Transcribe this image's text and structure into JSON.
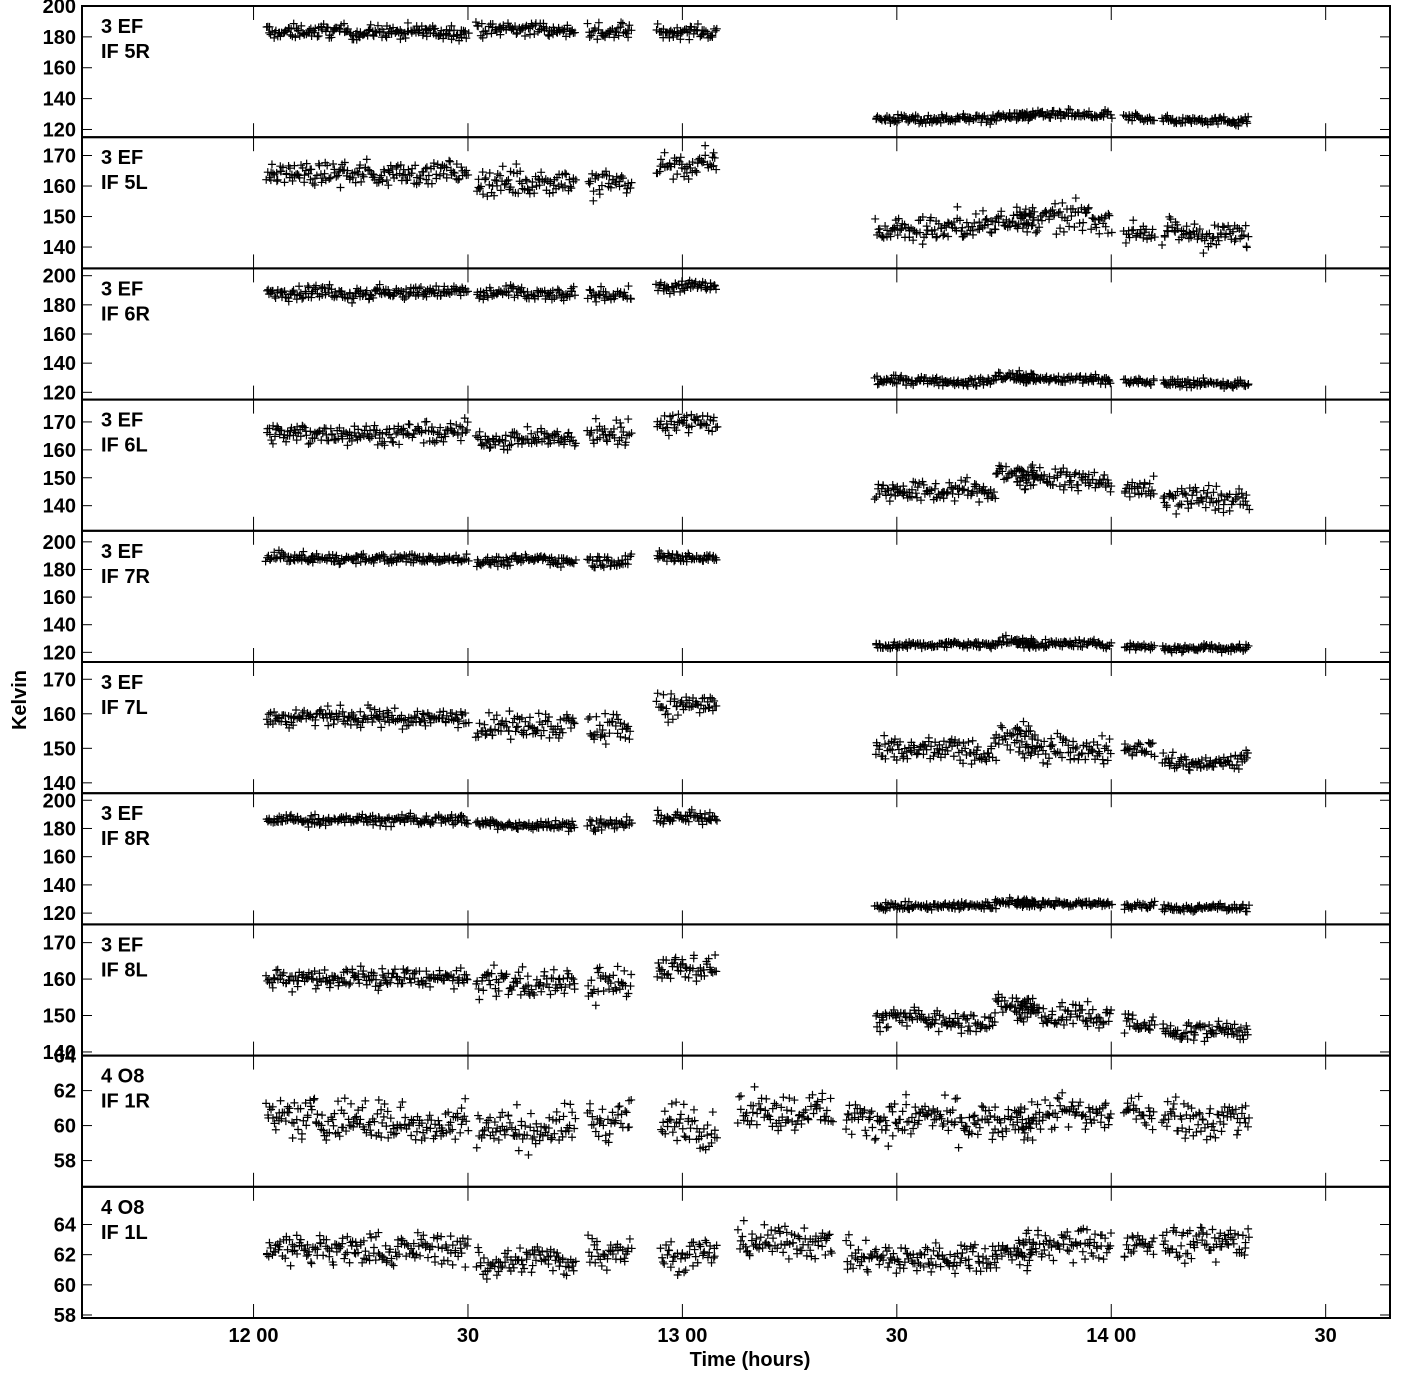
{
  "chart_data": {
    "type": "scatter",
    "xlabel": "Time (hours)",
    "ylabel": "Kelvin",
    "x_range_hours": [
      11.6,
      14.65
    ],
    "x_ticks": [
      {
        "value": 12.0,
        "label": "12 00"
      },
      {
        "value": 12.5,
        "label": "30"
      },
      {
        "value": 13.0,
        "label": "13 00"
      },
      {
        "value": 13.5,
        "label": "30"
      },
      {
        "value": 14.0,
        "label": "14 00"
      },
      {
        "value": 14.5,
        "label": "30"
      }
    ],
    "panels": [
      {
        "label1": "3 EF",
        "label2": "IF 5R",
        "ylim": [
          115,
          200
        ],
        "yticks": [
          120,
          140,
          160,
          180,
          200
        ],
        "segments": [
          [
            12.03,
            12.5,
            183,
            5
          ],
          [
            12.52,
            12.75,
            185,
            5
          ],
          [
            12.78,
            12.88,
            184,
            6
          ],
          [
            12.94,
            13.08,
            183,
            5
          ],
          [
            13.45,
            13.73,
            127,
            3
          ],
          [
            13.73,
            13.82,
            129,
            3
          ],
          [
            13.78,
            14.0,
            129,
            3
          ],
          [
            14.03,
            14.1,
            127,
            3
          ],
          [
            14.12,
            14.32,
            126,
            3
          ]
        ]
      },
      {
        "label1": "3 EF",
        "label2": "IF 5L",
        "ylim": [
          133,
          176
        ],
        "yticks": [
          140,
          150,
          160,
          170
        ],
        "segments": [
          [
            12.03,
            12.5,
            164,
            4
          ],
          [
            12.52,
            12.75,
            162,
            5
          ],
          [
            12.78,
            12.88,
            160,
            6
          ],
          [
            12.94,
            13.08,
            167,
            5
          ],
          [
            13.45,
            13.73,
            146,
            5
          ],
          [
            13.73,
            13.82,
            149,
            4
          ],
          [
            13.78,
            14.0,
            149,
            5
          ],
          [
            14.03,
            14.1,
            145,
            4
          ],
          [
            14.12,
            14.32,
            144,
            5
          ]
        ]
      },
      {
        "label1": "3 EF",
        "label2": "IF 6R",
        "ylim": [
          115,
          205
        ],
        "yticks": [
          120,
          140,
          160,
          180,
          200
        ],
        "segments": [
          [
            12.03,
            12.5,
            189,
            5
          ],
          [
            12.52,
            12.75,
            187,
            5
          ],
          [
            12.78,
            12.88,
            187,
            5
          ],
          [
            12.94,
            13.08,
            192,
            5
          ],
          [
            13.45,
            13.73,
            128,
            3
          ],
          [
            13.73,
            13.82,
            131,
            3
          ],
          [
            13.78,
            14.0,
            129,
            3
          ],
          [
            14.03,
            14.1,
            127,
            3
          ],
          [
            14.12,
            14.32,
            126,
            3
          ]
        ]
      },
      {
        "label1": "3 EF",
        "label2": "IF 6L",
        "ylim": [
          131,
          178
        ],
        "yticks": [
          140,
          150,
          160,
          170
        ],
        "segments": [
          [
            12.03,
            12.5,
            166,
            4
          ],
          [
            12.52,
            12.75,
            164,
            4
          ],
          [
            12.78,
            12.88,
            166,
            5
          ],
          [
            12.94,
            13.08,
            170,
            4
          ],
          [
            13.45,
            13.73,
            145,
            4
          ],
          [
            13.73,
            13.82,
            152,
            4
          ],
          [
            13.78,
            14.0,
            149,
            4
          ],
          [
            14.03,
            14.1,
            146,
            4
          ],
          [
            14.12,
            14.32,
            142,
            5
          ]
        ]
      },
      {
        "label1": "3 EF",
        "label2": "IF 7R",
        "ylim": [
          113,
          208
        ],
        "yticks": [
          120,
          140,
          160,
          180,
          200
        ],
        "segments": [
          [
            12.03,
            12.5,
            188,
            4
          ],
          [
            12.52,
            12.75,
            186,
            4
          ],
          [
            12.78,
            12.88,
            186,
            5
          ],
          [
            12.94,
            13.08,
            189,
            4
          ],
          [
            13.45,
            13.73,
            125,
            3
          ],
          [
            13.73,
            13.82,
            128,
            3
          ],
          [
            13.78,
            14.0,
            126,
            3
          ],
          [
            14.03,
            14.1,
            124,
            3
          ],
          [
            14.12,
            14.32,
            123,
            3
          ]
        ]
      },
      {
        "label1": "3 EF",
        "label2": "IF 7L",
        "ylim": [
          137,
          175
        ],
        "yticks": [
          140,
          150,
          160,
          170
        ],
        "segments": [
          [
            12.03,
            12.5,
            159,
            3
          ],
          [
            12.52,
            12.75,
            157,
            4
          ],
          [
            12.78,
            12.88,
            156,
            5
          ],
          [
            12.94,
            13.08,
            163,
            4
          ],
          [
            13.45,
            13.73,
            149,
            4
          ],
          [
            13.73,
            13.82,
            154,
            4
          ],
          [
            13.78,
            14.0,
            150,
            4
          ],
          [
            14.03,
            14.1,
            150,
            3
          ],
          [
            14.12,
            14.32,
            146,
            3
          ]
        ]
      },
      {
        "label1": "3 EF",
        "label2": "IF 8R",
        "ylim": [
          112,
          205
        ],
        "yticks": [
          120,
          140,
          160,
          180,
          200
        ],
        "segments": [
          [
            12.03,
            12.5,
            186,
            4
          ],
          [
            12.52,
            12.75,
            183,
            4
          ],
          [
            12.78,
            12.88,
            183,
            5
          ],
          [
            12.94,
            13.08,
            188,
            5
          ],
          [
            13.45,
            13.73,
            125,
            3
          ],
          [
            13.73,
            13.82,
            128,
            3
          ],
          [
            13.78,
            14.0,
            127,
            3
          ],
          [
            14.03,
            14.1,
            125,
            3
          ],
          [
            14.12,
            14.32,
            124,
            3
          ]
        ]
      },
      {
        "label1": "3 EF",
        "label2": "IF 8L",
        "ylim": [
          139,
          175
        ],
        "yticks": [
          140,
          150,
          160,
          170
        ],
        "segments": [
          [
            12.03,
            12.5,
            160,
            3
          ],
          [
            12.52,
            12.75,
            159,
            4
          ],
          [
            12.78,
            12.88,
            158,
            5
          ],
          [
            12.94,
            13.08,
            163,
            4
          ],
          [
            13.45,
            13.73,
            149,
            3
          ],
          [
            13.73,
            13.82,
            153,
            3
          ],
          [
            13.78,
            14.0,
            150,
            4
          ],
          [
            14.03,
            14.1,
            148,
            3
          ],
          [
            14.12,
            14.32,
            146,
            3
          ]
        ]
      },
      {
        "label1": "4 O8",
        "label2": "IF 1R",
        "ylim": [
          56.5,
          64.0
        ],
        "yticks": [
          58,
          60,
          62,
          64
        ],
        "segments": [
          [
            12.03,
            12.5,
            60.3,
            1.2
          ],
          [
            12.52,
            12.75,
            60.0,
            1.2
          ],
          [
            12.78,
            12.88,
            60.3,
            1.2
          ],
          [
            12.95,
            13.08,
            60.0,
            1.2
          ],
          [
            13.13,
            13.35,
            61.0,
            1.2
          ],
          [
            13.38,
            13.73,
            60.3,
            1.2
          ],
          [
            13.73,
            13.82,
            60.0,
            1.0
          ],
          [
            13.78,
            14.0,
            60.5,
            1.1
          ],
          [
            14.03,
            14.1,
            60.8,
            1.1
          ],
          [
            14.12,
            14.32,
            60.6,
            1.1
          ]
        ]
      },
      {
        "label1": "4 O8",
        "label2": "IF 1L",
        "ylim": [
          57.8,
          66.5
        ],
        "yticks": [
          58,
          60,
          62,
          64
        ],
        "segments": [
          [
            12.03,
            12.5,
            62.4,
            1.2
          ],
          [
            12.52,
            12.75,
            61.6,
            1.2
          ],
          [
            12.78,
            12.88,
            62.3,
            1.2
          ],
          [
            12.95,
            13.08,
            62.0,
            1.2
          ],
          [
            13.13,
            13.35,
            62.8,
            1.2
          ],
          [
            13.38,
            13.73,
            61.8,
            1.2
          ],
          [
            13.73,
            13.82,
            62.0,
            1.0
          ],
          [
            13.78,
            14.0,
            62.6,
            1.2
          ],
          [
            14.03,
            14.1,
            62.5,
            1.2
          ],
          [
            14.12,
            14.32,
            62.8,
            1.2
          ]
        ]
      }
    ]
  }
}
